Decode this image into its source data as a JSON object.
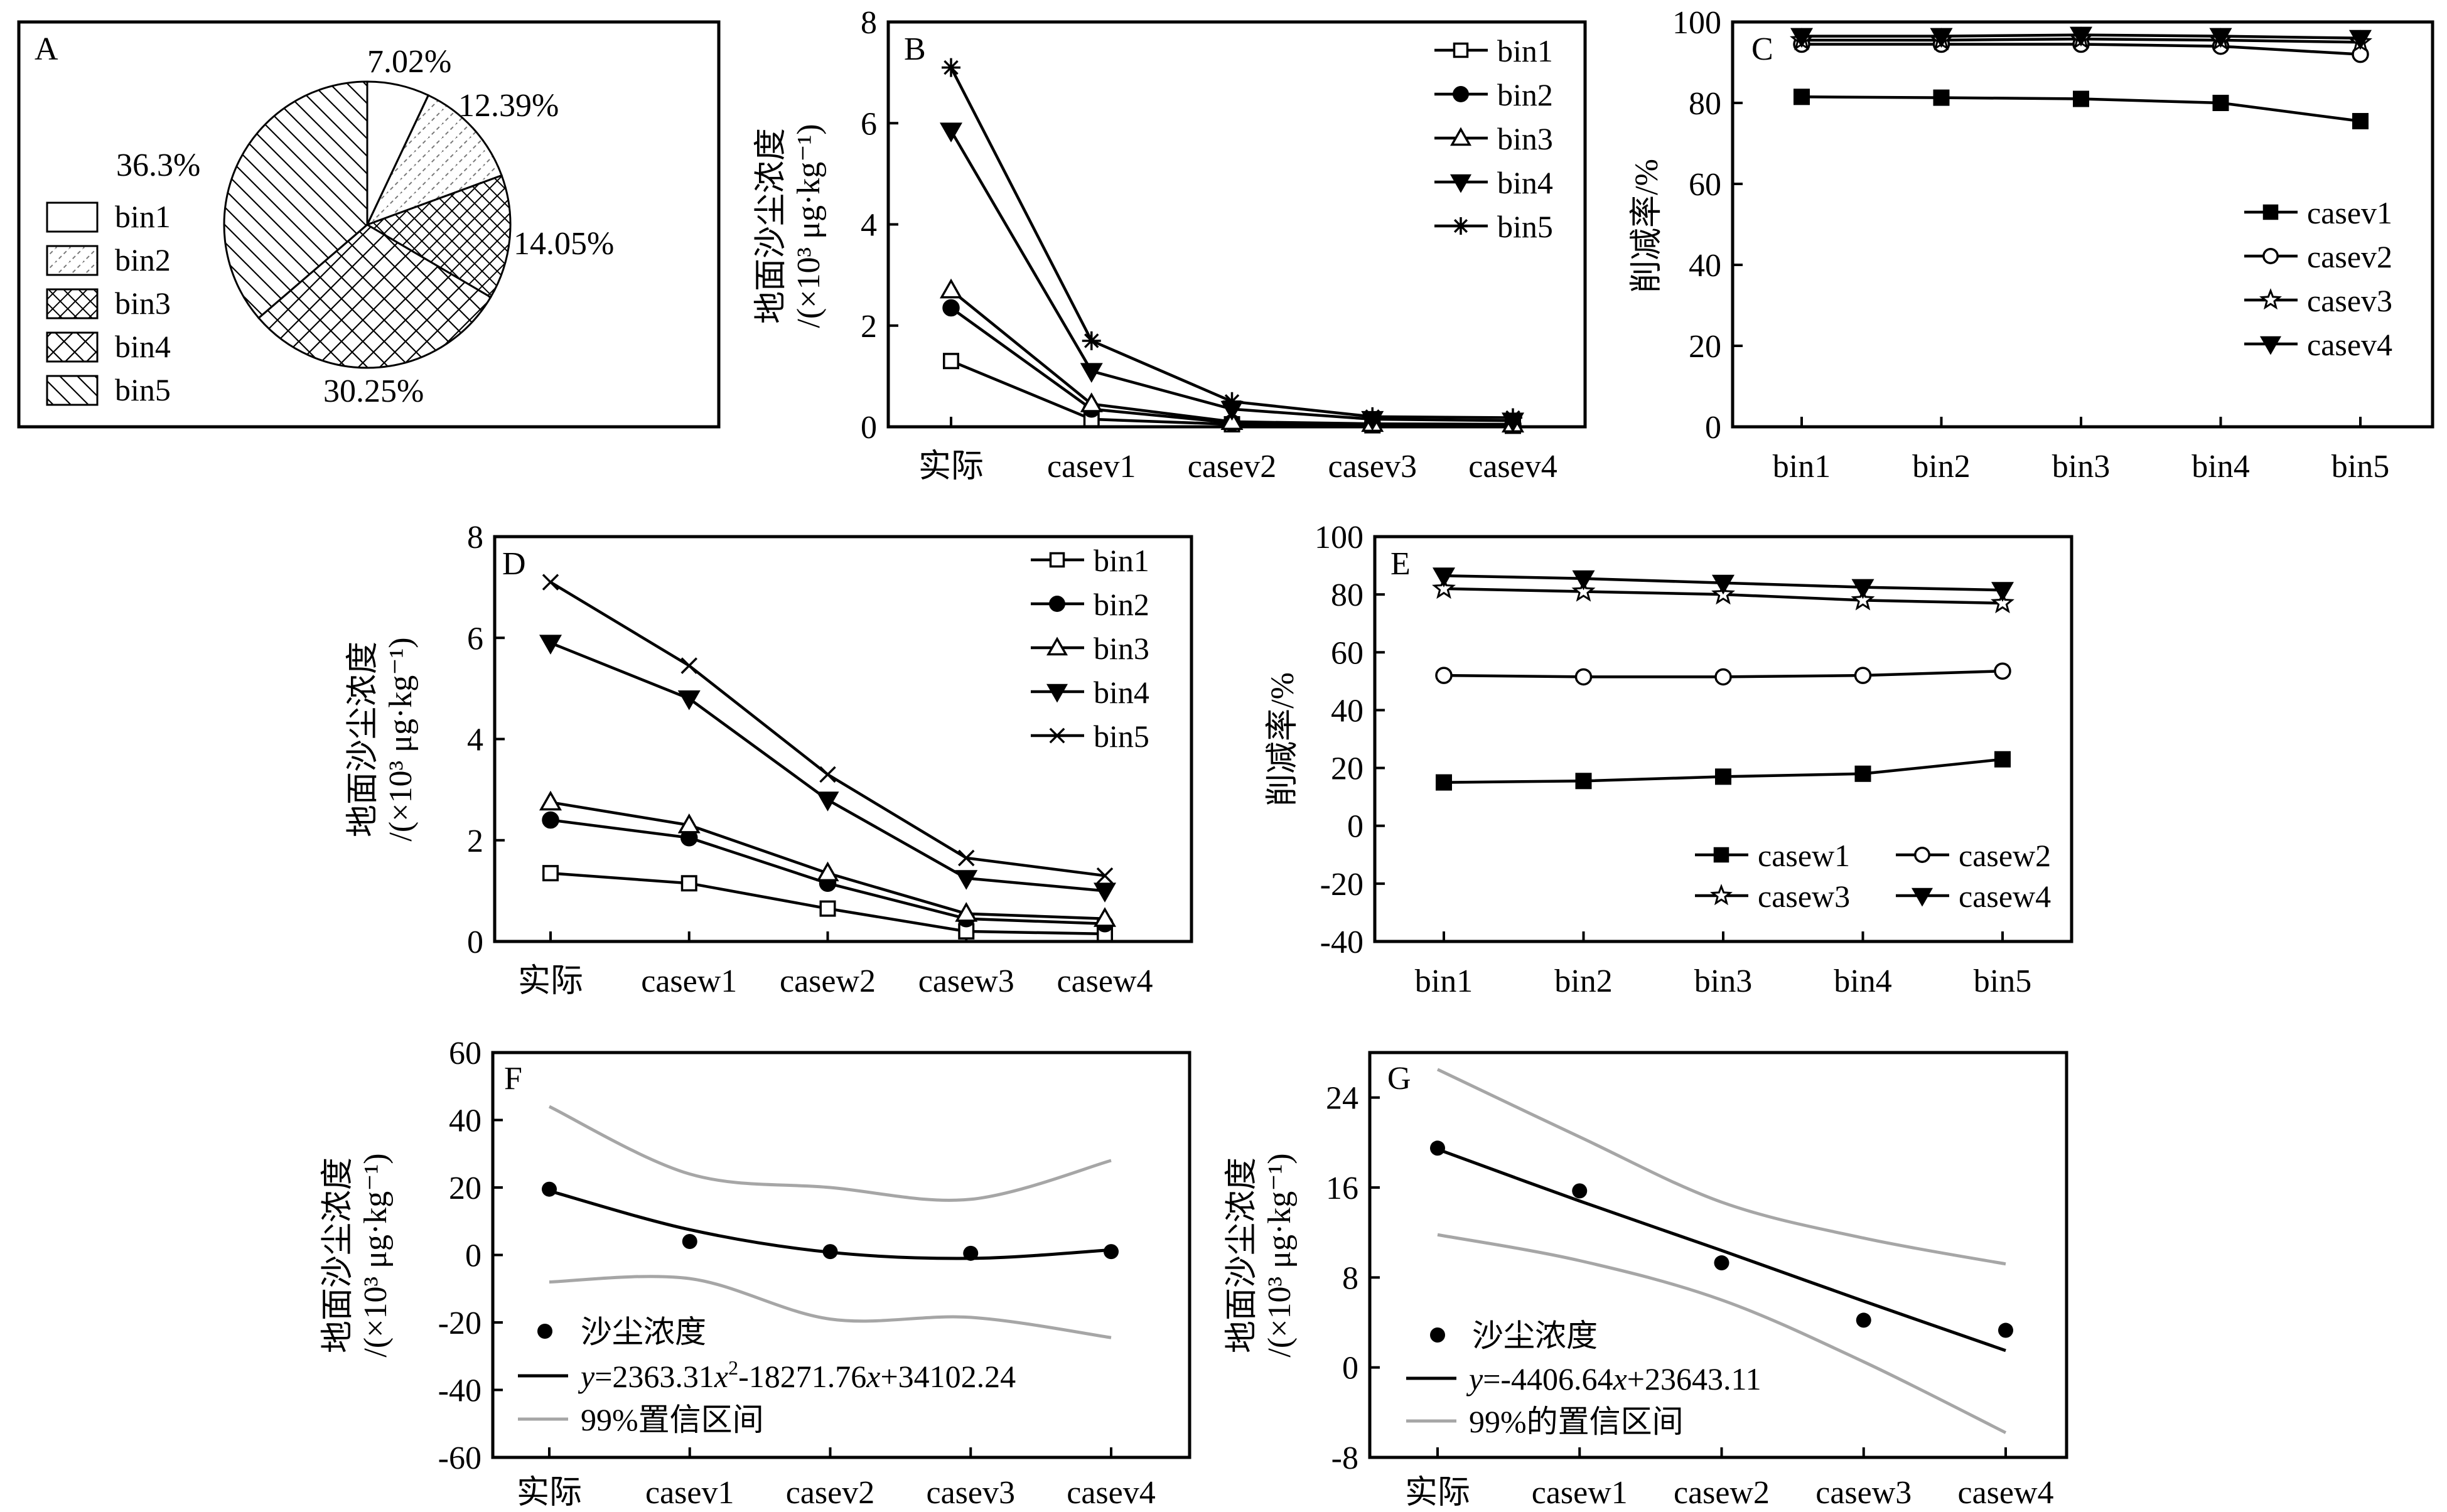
{
  "colors": {
    "ink": "#000000",
    "ci": "#a6a6a6"
  },
  "panels": {
    "A": {
      "letter": "A",
      "chart_data": {
        "type": "pie",
        "categories": [
          "bin1",
          "bin2",
          "bin3",
          "bin4",
          "bin5"
        ],
        "values": [
          7.02,
          12.39,
          14.05,
          30.25,
          36.3
        ],
        "value_labels": [
          "7.02%",
          "12.39%",
          "14.05%",
          "30.25%",
          "36.3%"
        ],
        "legend": [
          "bin1",
          "bin2",
          "bin3",
          "bin4",
          "bin5"
        ],
        "legend_position": "left"
      }
    },
    "B": {
      "letter": "B",
      "chart_data": {
        "type": "line",
        "categories": [
          "实际",
          "casev1",
          "casev2",
          "casev3",
          "casev4"
        ],
        "series": [
          {
            "name": "bin1",
            "marker": "square-open",
            "values": [
              1.3,
              0.15,
              0.05,
              0.03,
              0.02
            ]
          },
          {
            "name": "bin2",
            "marker": "circle-filled",
            "values": [
              2.35,
              0.35,
              0.08,
              0.05,
              0.04
            ]
          },
          {
            "name": "bin3",
            "marker": "triangle-open",
            "values": [
              2.7,
              0.45,
              0.1,
              0.06,
              0.05
            ]
          },
          {
            "name": "bin4",
            "marker": "triangle-down-filled",
            "values": [
              5.85,
              1.1,
              0.35,
              0.15,
              0.12
            ]
          },
          {
            "name": "bin5",
            "marker": "asterisk",
            "values": [
              7.1,
              1.7,
              0.5,
              0.2,
              0.18
            ]
          }
        ],
        "ylabel_line1": "地面沙尘浓度",
        "ylabel_line2": "/(×10³ μg·kg⁻¹)",
        "ylim": [
          0,
          8
        ],
        "yticks": [
          "0",
          "2",
          "4",
          "6",
          "8"
        ],
        "legend_position": "top-right"
      }
    },
    "C": {
      "letter": "C",
      "chart_data": {
        "type": "line",
        "categories": [
          "bin1",
          "bin2",
          "bin3",
          "bin4",
          "bin5"
        ],
        "series": [
          {
            "name": "casev1",
            "marker": "square-filled",
            "values": [
              81.5,
              81.3,
              81.0,
              80.0,
              75.5
            ]
          },
          {
            "name": "casev2",
            "marker": "circle-open",
            "values": [
              94.5,
              94.5,
              94.5,
              94.0,
              92.0
            ]
          },
          {
            "name": "casev3",
            "marker": "star-open",
            "values": [
              95.5,
              95.5,
              95.8,
              95.5,
              95.0
            ]
          },
          {
            "name": "casev4",
            "marker": "triangle-down-filled",
            "values": [
              96.5,
              96.5,
              96.8,
              96.5,
              96.0
            ]
          }
        ],
        "ylabel": "削减率/%",
        "ylim": [
          0,
          100
        ],
        "yticks": [
          "0",
          "20",
          "40",
          "60",
          "80",
          "100"
        ],
        "legend_position": "right"
      }
    },
    "D": {
      "letter": "D",
      "chart_data": {
        "type": "line",
        "categories": [
          "实际",
          "casew1",
          "casew2",
          "casew3",
          "casew4"
        ],
        "series": [
          {
            "name": "bin1",
            "marker": "square-open",
            "values": [
              1.35,
              1.15,
              0.65,
              0.2,
              0.15
            ]
          },
          {
            "name": "bin2",
            "marker": "circle-filled",
            "values": [
              2.4,
              2.05,
              1.15,
              0.45,
              0.35
            ]
          },
          {
            "name": "bin3",
            "marker": "triangle-open",
            "values": [
              2.75,
              2.3,
              1.35,
              0.55,
              0.45
            ]
          },
          {
            "name": "bin4",
            "marker": "triangle-down-filled",
            "values": [
              5.9,
              4.8,
              2.8,
              1.25,
              1.0
            ]
          },
          {
            "name": "bin5",
            "marker": "x-cross",
            "values": [
              7.1,
              5.45,
              3.3,
              1.65,
              1.3
            ]
          }
        ],
        "ylabel_line1": "地面沙尘浓度",
        "ylabel_line2": "/(×10³ μg·kg⁻¹)",
        "ylim": [
          0,
          8
        ],
        "yticks": [
          "0",
          "2",
          "4",
          "6",
          "8"
        ],
        "legend_position": "top-right"
      }
    },
    "E": {
      "letter": "E",
      "chart_data": {
        "type": "line",
        "categories": [
          "bin1",
          "bin2",
          "bin3",
          "bin4",
          "bin5"
        ],
        "series": [
          {
            "name": "casew1",
            "marker": "square-filled",
            "values": [
              15,
              15.5,
              17,
              18,
              23
            ]
          },
          {
            "name": "casew2",
            "marker": "circle-open",
            "values": [
              52,
              51.5,
              51.5,
              52,
              53.5
            ]
          },
          {
            "name": "casew3",
            "marker": "star-open",
            "values": [
              82,
              81,
              80,
              78,
              77
            ]
          },
          {
            "name": "casew4",
            "marker": "triangle-down-filled",
            "values": [
              86.5,
              85.5,
              84,
              82.5,
              81.5
            ]
          }
        ],
        "ylabel": "削减率/%",
        "ylim": [
          -40,
          100
        ],
        "yticks": [
          "-40",
          "-20",
          "0",
          "20",
          "40",
          "60",
          "80",
          "100"
        ],
        "legend_position": "bottom-right"
      }
    },
    "F": {
      "letter": "F",
      "chart_data": {
        "type": "scatter",
        "categories": [
          "实际",
          "casev1",
          "casev2",
          "casev3",
          "casev4"
        ],
        "points": [
          19.5,
          4.0,
          1.0,
          0.5,
          1.0
        ],
        "fit": [
          19.0,
          7.5,
          0.8,
          -1.0,
          1.5
        ],
        "ci_upper": [
          44,
          24,
          20,
          16.5,
          28
        ],
        "ci_lower": [
          -8,
          -7,
          -19,
          -18.5,
          -24.5
        ],
        "ylabel_line1": "地面沙尘浓度",
        "ylabel_line2": "/(×10³ μg·kg⁻¹)",
        "ylim": [
          -60,
          60
        ],
        "yticks": [
          "-60",
          "-40",
          "-20",
          "0",
          "20",
          "40",
          "60"
        ],
        "legend": {
          "points": "沙尘浓度",
          "fit_prefix": "y",
          "fit_rest": "=2363.31",
          "fit_x1": "x",
          "fit_sup": "2",
          "fit_mid": "-18271.76",
          "fit_x2": "x",
          "fit_end": "+34102.24",
          "ci": "99%置信区间"
        },
        "legend_position": "bottom-left"
      }
    },
    "G": {
      "letter": "G",
      "chart_data": {
        "type": "scatter",
        "categories": [
          "实际",
          "casew1",
          "casew2",
          "casew3",
          "casew4"
        ],
        "points": [
          19.5,
          15.7,
          9.3,
          4.2,
          3.3
        ],
        "fit": [
          19.4,
          14.8,
          10.4,
          5.9,
          1.5
        ],
        "ci_upper": [
          26.5,
          20.5,
          14.7,
          11.5,
          9.2
        ],
        "ci_lower": [
          11.8,
          9.5,
          6.0,
          0.5,
          -5.8
        ],
        "ylabel_line1": "地面沙尘浓度",
        "ylabel_line2": "/(×10³ μg·kg⁻¹)",
        "ylim": [
          -8,
          28
        ],
        "yticks": [
          "-8",
          "0",
          "8",
          "16",
          "24"
        ],
        "ytick_values": [
          -8,
          0,
          8,
          16,
          24
        ],
        "legend": {
          "points": "沙尘浓度",
          "fit_prefix": "y",
          "fit_rest": "=-4406.64",
          "fit_x1": "x",
          "fit_end": "+23643.11",
          "ci": "99%的置信区间"
        },
        "legend_position": "bottom-left"
      }
    }
  }
}
